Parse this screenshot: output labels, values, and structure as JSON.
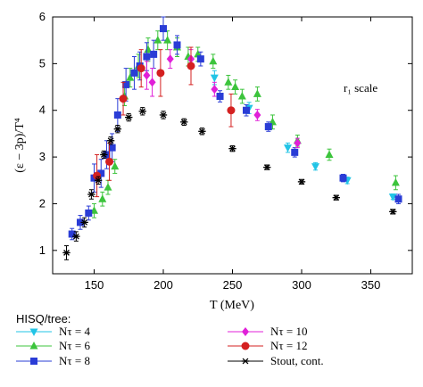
{
  "chart_data": {
    "type": "scatter",
    "xlabel": "T (MeV)",
    "ylabel": "(ε − 3p)/T⁴",
    "xlim": [
      120,
      380
    ],
    "ylim": [
      0.5,
      6
    ],
    "xticks": [
      150,
      200,
      250,
      300,
      350
    ],
    "yticks": [
      1,
      2,
      3,
      4,
      5,
      6
    ],
    "annotation": "r₁ scale",
    "legend_title": "HISQ/tree:",
    "legend_placement": "below",
    "series": [
      {
        "name": "Nτ = 4",
        "color": "#22c4e6",
        "marker": "triangle-down",
        "points": [
          [
            237,
            4.7
          ],
          [
            262,
            4.05
          ],
          [
            290,
            3.2
          ],
          [
            310,
            2.8
          ],
          [
            333,
            2.5
          ],
          [
            366,
            2.15
          ]
        ],
        "errors": [
          0.15,
          0.12,
          0.1,
          0.08,
          0.07,
          0.06
        ]
      },
      {
        "name": "Nτ = 6",
        "color": "#3cc43c",
        "marker": "triangle-up",
        "points": [
          [
            150,
            1.85
          ],
          [
            156,
            2.1
          ],
          [
            160,
            2.35
          ],
          [
            165,
            2.8
          ],
          [
            172,
            4.3
          ],
          [
            176,
            4.7
          ],
          [
            182,
            4.95
          ],
          [
            189,
            5.3
          ],
          [
            196,
            5.5
          ],
          [
            203,
            5.5
          ],
          [
            210,
            5.35
          ],
          [
            218,
            5.15
          ],
          [
            225,
            5.2
          ],
          [
            236,
            5.05
          ],
          [
            247,
            4.6
          ],
          [
            252,
            4.5
          ],
          [
            257,
            4.3
          ],
          [
            268,
            4.35
          ],
          [
            279,
            3.75
          ],
          [
            297,
            3.35
          ],
          [
            320,
            3.05
          ],
          [
            368,
            2.45
          ]
        ],
        "errors": [
          0.15,
          0.15,
          0.15,
          0.15,
          0.2,
          0.2,
          0.25,
          0.25,
          0.2,
          0.2,
          0.2,
          0.2,
          0.15,
          0.15,
          0.15,
          0.15,
          0.15,
          0.15,
          0.15,
          0.12,
          0.12,
          0.15
        ]
      },
      {
        "name": "Nτ = 8",
        "color": "#2a3cd6",
        "marker": "square",
        "points": [
          [
            134,
            1.35
          ],
          [
            140,
            1.6
          ],
          [
            146,
            1.8
          ],
          [
            150,
            2.55
          ],
          [
            155,
            2.65
          ],
          [
            159,
            3.05
          ],
          [
            163,
            3.2
          ],
          [
            167,
            3.9
          ],
          [
            173,
            4.55
          ],
          [
            179,
            4.8
          ],
          [
            183,
            4.95
          ],
          [
            188,
            5.15
          ],
          [
            193,
            5.2
          ],
          [
            200,
            5.75
          ],
          [
            210,
            5.4
          ],
          [
            227,
            5.1
          ],
          [
            241,
            4.3
          ],
          [
            260,
            4.0
          ],
          [
            276,
            3.65
          ],
          [
            295,
            3.1
          ],
          [
            330,
            2.55
          ],
          [
            370,
            2.1
          ]
        ],
        "errors": [
          0.12,
          0.15,
          0.15,
          0.3,
          0.3,
          0.3,
          0.3,
          0.35,
          0.35,
          0.35,
          0.3,
          0.3,
          0.3,
          0.25,
          0.2,
          0.15,
          0.12,
          0.12,
          0.1,
          0.1,
          0.08,
          0.1
        ]
      },
      {
        "name": "Nτ = 10",
        "color": "#e020d8",
        "marker": "diamond",
        "points": [
          [
            188,
            4.75
          ],
          [
            192,
            4.6
          ],
          [
            205,
            5.1
          ],
          [
            220,
            5.1
          ],
          [
            237,
            4.45
          ],
          [
            268,
            3.9
          ],
          [
            297,
            3.3
          ]
        ],
        "errors": [
          0.3,
          0.3,
          0.2,
          0.2,
          0.15,
          0.12,
          0.1
        ]
      },
      {
        "name": "Nτ = 12",
        "color": "#d42020",
        "marker": "circle",
        "points": [
          [
            152,
            2.6
          ],
          [
            161,
            2.9
          ],
          [
            171,
            4.25
          ],
          [
            184,
            4.9
          ],
          [
            198,
            4.8
          ],
          [
            220,
            4.95
          ],
          [
            249,
            4.0
          ]
        ],
        "errors": [
          0.45,
          0.4,
          0.35,
          0.4,
          0.5,
          0.4,
          0.35
        ]
      },
      {
        "name": "Stout, cont.",
        "color": "#000000",
        "marker": "asterisk",
        "points": [
          [
            130,
            0.95
          ],
          [
            137,
            1.3
          ],
          [
            143,
            1.6
          ],
          [
            148,
            2.2
          ],
          [
            153,
            2.5
          ],
          [
            157,
            3.05
          ],
          [
            162,
            3.35
          ],
          [
            167,
            3.6
          ],
          [
            175,
            3.85
          ],
          [
            185,
            3.98
          ],
          [
            200,
            3.9
          ],
          [
            215,
            3.75
          ],
          [
            228,
            3.55
          ],
          [
            250,
            3.18
          ],
          [
            275,
            2.78
          ],
          [
            300,
            2.47
          ],
          [
            325,
            2.13
          ],
          [
            366,
            1.83
          ]
        ],
        "errors": [
          0.15,
          0.1,
          0.1,
          0.1,
          0.08,
          0.08,
          0.08,
          0.08,
          0.08,
          0.08,
          0.08,
          0.07,
          0.07,
          0.06,
          0.05,
          0.05,
          0.05,
          0.05
        ]
      }
    ]
  }
}
